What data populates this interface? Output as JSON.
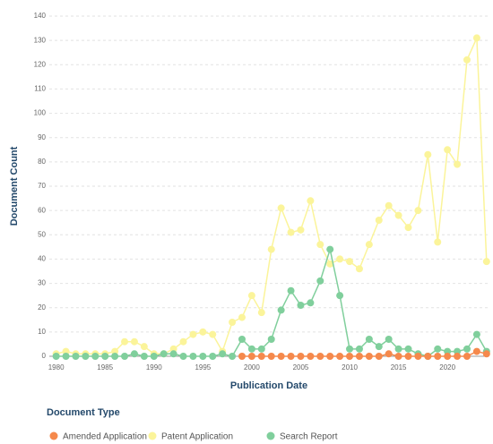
{
  "chart_data": {
    "type": "line",
    "xlabel": "Publication Date",
    "ylabel": "Document Count",
    "legend_title": "Document Type",
    "x": [
      1980,
      1981,
      1982,
      1983,
      1984,
      1985,
      1986,
      1987,
      1988,
      1989,
      1990,
      1991,
      1992,
      1993,
      1994,
      1995,
      1996,
      1997,
      1998,
      1999,
      2000,
      2001,
      2002,
      2003,
      2004,
      2005,
      2006,
      2007,
      2008,
      2009,
      2010,
      2011,
      2012,
      2013,
      2014,
      2015,
      2016,
      2017,
      2018,
      2019,
      2020,
      2021,
      2022,
      2023,
      2024
    ],
    "series": [
      {
        "name": "Amended Application",
        "color": "#f5894c",
        "values": [
          null,
          null,
          null,
          null,
          null,
          null,
          null,
          null,
          null,
          null,
          null,
          null,
          null,
          null,
          null,
          null,
          null,
          null,
          null,
          0,
          0,
          0,
          0,
          0,
          0,
          0,
          0,
          0,
          0,
          0,
          0,
          0,
          0,
          0,
          1,
          0,
          0,
          0,
          0,
          0,
          0,
          0,
          0,
          2,
          1
        ]
      },
      {
        "name": "Patent Application",
        "color": "#fbf49a",
        "values": [
          1,
          2,
          1,
          1,
          1,
          1,
          2,
          6,
          6,
          4,
          1,
          1,
          3,
          6,
          9,
          10,
          9,
          2,
          14,
          16,
          25,
          18,
          44,
          61,
          51,
          52,
          64,
          46,
          38,
          40,
          39,
          36,
          46,
          56,
          62,
          58,
          53,
          60,
          83,
          47,
          85,
          79,
          122,
          131,
          39
        ]
      },
      {
        "name": "Search Report",
        "color": "#80cf9c",
        "values": [
          0,
          0,
          0,
          0,
          0,
          0,
          0,
          0,
          1,
          0,
          0,
          1,
          1,
          0,
          0,
          0,
          0,
          1,
          0,
          7,
          3,
          3,
          7,
          19,
          27,
          21,
          22,
          31,
          44,
          25,
          3,
          3,
          7,
          4,
          7,
          3,
          3,
          1,
          0,
          3,
          2,
          2,
          3,
          9,
          2
        ]
      }
    ],
    "xlim": [
      1979.3,
      2024.2
    ],
    "xticks": [
      1980,
      1985,
      1990,
      1995,
      2000,
      2005,
      2010,
      2015,
      2020
    ],
    "ylim": [
      0,
      140
    ],
    "yticks": [
      0,
      10,
      20,
      30,
      40,
      50,
      60,
      70,
      80,
      90,
      100,
      110,
      120,
      130,
      140
    ],
    "grid": true,
    "legend": "bottom"
  }
}
